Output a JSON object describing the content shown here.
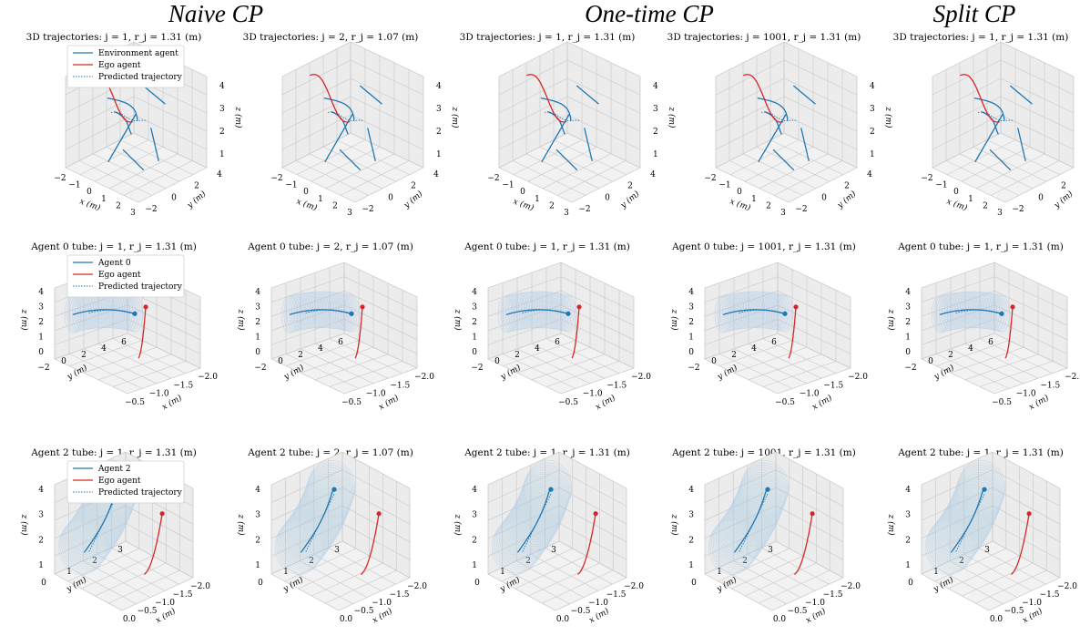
{
  "columns": [
    "Naive CP",
    "One-time CP",
    "Split CP"
  ],
  "colors": {
    "env": "#1f77b4",
    "ego": "#d62728",
    "tube": "#a9c8e4",
    "grid": "#c8c8c8"
  },
  "chart_data": [
    {
      "type": "line",
      "row": 0,
      "col": 0,
      "title": "3D trajectories: j = 1, r_j = 1.31 (m)",
      "xlabel": "x (m)",
      "ylabel": "y (m)",
      "zlabel": "z (m)",
      "xticks": [
        "−2",
        "−1",
        "0",
        "1",
        "2",
        "3"
      ],
      "yticks": [
        "−2",
        "0",
        "2",
        "4"
      ],
      "zticks": [
        "1",
        "2",
        "3",
        "4"
      ],
      "legend": [
        "Environment agent",
        "Ego agent",
        "Predicted trajectory"
      ],
      "legend_loc": "top"
    },
    {
      "type": "line",
      "row": 0,
      "col": 1,
      "title": "3D trajectories: j = 2, r_j = 1.07 (m)",
      "xlabel": "x (m)",
      "ylabel": "y (m)",
      "zlabel": "z (m)",
      "xticks": [
        "−2",
        "−1",
        "0",
        "1",
        "2",
        "3"
      ],
      "yticks": [
        "−2",
        "0",
        "2",
        "4"
      ],
      "zticks": [
        "1",
        "2",
        "3",
        "4"
      ]
    },
    {
      "type": "line",
      "row": 0,
      "col": 2,
      "title": "3D trajectories: j = 1, r_j = 1.31 (m)",
      "xlabel": "x (m)",
      "ylabel": "y (m)",
      "zlabel": "z (m)",
      "xticks": [
        "−2",
        "−1",
        "0",
        "1",
        "2",
        "3"
      ],
      "yticks": [
        "−2",
        "0",
        "2",
        "4"
      ],
      "zticks": [
        "1",
        "2",
        "3",
        "4"
      ]
    },
    {
      "type": "line",
      "row": 0,
      "col": 3,
      "title": "3D trajectories: j = 1001, r_j = 1.31 (m)",
      "xlabel": "x (m)",
      "ylabel": "y (m)",
      "zlabel": "z (m)",
      "xticks": [
        "−2",
        "−1",
        "0",
        "1",
        "2",
        "3"
      ],
      "yticks": [
        "−2",
        "0",
        "2",
        "4"
      ],
      "zticks": [
        "1",
        "2",
        "3",
        "4"
      ]
    },
    {
      "type": "line",
      "row": 0,
      "col": 4,
      "title": "3D trajectories: j = 1, r_j = 1.31 (m)",
      "xlabel": "x (m)",
      "ylabel": "y (m)",
      "zlabel": "z (m)",
      "xticks": [
        "−2",
        "−1",
        "0",
        "1",
        "2",
        "3"
      ],
      "yticks": [
        "−2",
        "0",
        "2",
        "4"
      ],
      "zticks": [
        "1",
        "2",
        "3",
        "4"
      ]
    },
    {
      "type": "line",
      "row": 1,
      "col": 0,
      "title": "Agent 0 tube: j = 1, r_j = 1.31 (m)",
      "xlabel": "x (m)",
      "ylabel": "y (m)",
      "zlabel": "z (m)",
      "xticks": [
        "−0.5",
        "−1.0",
        "−1.5",
        "−2.0"
      ],
      "yticks": [
        "−2",
        "0",
        "2",
        "4",
        "6"
      ],
      "zticks": [
        "0",
        "1",
        "2",
        "3",
        "4"
      ],
      "legend": [
        "Agent 0",
        "Ego agent",
        "Predicted trajectory"
      ],
      "legend_loc": "top"
    },
    {
      "type": "line",
      "row": 1,
      "col": 1,
      "title": "Agent 0 tube: j = 2, r_j = 1.07 (m)",
      "xlabel": "x (m)",
      "ylabel": "y (m)",
      "zlabel": "z (m)",
      "xticks": [
        "−0.5",
        "−1.0",
        "−1.5",
        "−2.0"
      ],
      "yticks": [
        "−2",
        "0",
        "2",
        "4",
        "6"
      ],
      "zticks": [
        "0",
        "1",
        "2",
        "3",
        "4"
      ]
    },
    {
      "type": "line",
      "row": 1,
      "col": 2,
      "title": "Agent 0 tube: j = 1, r_j = 1.31 (m)",
      "xlabel": "x (m)",
      "ylabel": "y (m)",
      "zlabel": "z (m)",
      "xticks": [
        "−0.5",
        "−1.0",
        "−1.5",
        "−2.0"
      ],
      "yticks": [
        "−2",
        "0",
        "2",
        "4",
        "6"
      ],
      "zticks": [
        "0",
        "1",
        "2",
        "3",
        "4"
      ]
    },
    {
      "type": "line",
      "row": 1,
      "col": 3,
      "title": "Agent 0 tube: j = 1001, r_j = 1.31 (m)",
      "xlabel": "x (m)",
      "ylabel": "y (m)",
      "zlabel": "z (m)",
      "xticks": [
        "−0.5",
        "−1.0",
        "−1.5",
        "−2.0"
      ],
      "yticks": [
        "−2",
        "0",
        "2",
        "4",
        "6"
      ],
      "zticks": [
        "0",
        "1",
        "2",
        "3",
        "4"
      ]
    },
    {
      "type": "line",
      "row": 1,
      "col": 4,
      "title": "Agent 0 tube: j = 1, r_j = 1.31 (m)",
      "xlabel": "x (m)",
      "ylabel": "y (m)",
      "zlabel": "z (m)",
      "xticks": [
        "−0.5",
        "−1.0",
        "−1.5",
        "−2.0"
      ],
      "yticks": [
        "−2",
        "0",
        "2",
        "4",
        "6"
      ],
      "zticks": [
        "0",
        "1",
        "2",
        "3",
        "4"
      ]
    },
    {
      "type": "line",
      "row": 2,
      "col": 0,
      "title": "Agent 2 tube: j = 1, r_j = 1.31 (m)",
      "xlabel": "x (m)",
      "ylabel": "y (m)",
      "zlabel": "z (m)",
      "xticks": [
        "0.0",
        "−0.5",
        "−1.0",
        "−1.5",
        "−2.0"
      ],
      "yticks": [
        "0",
        "1",
        "2",
        "3"
      ],
      "zticks": [
        "1",
        "2",
        "3",
        "4"
      ],
      "legend": [
        "Agent 2",
        "Ego agent",
        "Predicted trajectory"
      ],
      "legend_loc": "top"
    },
    {
      "type": "line",
      "row": 2,
      "col": 1,
      "title": "Agent 2 tube: j = 2, r_j = 1.07 (m)",
      "xlabel": "x (m)",
      "ylabel": "y (m)",
      "zlabel": "z (m)",
      "xticks": [
        "0.0",
        "−0.5",
        "−1.0",
        "−1.5",
        "−2.0"
      ],
      "yticks": [
        "0",
        "1",
        "2",
        "3"
      ],
      "zticks": [
        "1",
        "2",
        "3",
        "4"
      ]
    },
    {
      "type": "line",
      "row": 2,
      "col": 2,
      "title": "Agent 2 tube: j = 1, r_j = 1.31 (m)",
      "xlabel": "x (m)",
      "ylabel": "y (m)",
      "zlabel": "z (m)",
      "xticks": [
        "0.0",
        "−0.5",
        "−1.0",
        "−1.5",
        "−2.0"
      ],
      "yticks": [
        "0",
        "1",
        "2",
        "3"
      ],
      "zticks": [
        "1",
        "2",
        "3",
        "4"
      ]
    },
    {
      "type": "line",
      "row": 2,
      "col": 3,
      "title": "Agent 2 tube: j = 1001, r_j = 1.31 (m)",
      "xlabel": "x (m)",
      "ylabel": "y (m)",
      "zlabel": "z (m)",
      "xticks": [
        "0.0",
        "−0.5",
        "−1.0",
        "−1.5",
        "−2.0"
      ],
      "yticks": [
        "0",
        "1",
        "2",
        "3"
      ],
      "zticks": [
        "1",
        "2",
        "3",
        "4"
      ]
    },
    {
      "type": "line",
      "row": 2,
      "col": 4,
      "title": "Agent 2 tube: j = 1, r_j = 1.31 (m)",
      "xlabel": "x (m)",
      "ylabel": "y (m)",
      "zlabel": "z (m)",
      "xticks": [
        "0.0",
        "−0.5",
        "−1.0",
        "−1.5",
        "−2.0"
      ],
      "yticks": [
        "0",
        "1",
        "2",
        "3"
      ],
      "zticks": [
        "1",
        "2",
        "3",
        "4"
      ]
    }
  ]
}
